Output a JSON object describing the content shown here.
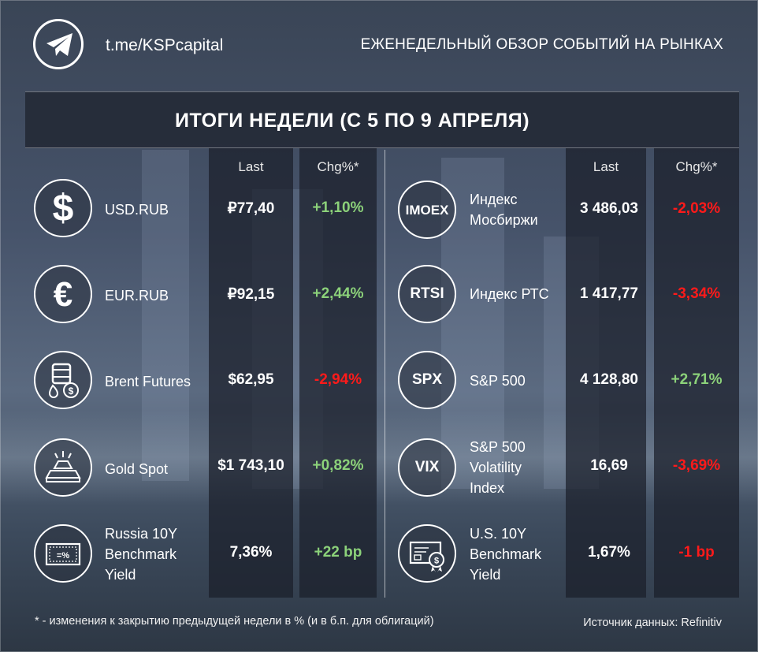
{
  "header": {
    "link": "t.me/KSPcapital",
    "title": "ЕЖЕНЕДЕЛЬНЫЙ ОБЗОР СОБЫТИЙ НА РЫНКАХ"
  },
  "banner": {
    "title": "ИТОГИ НЕДЕЛИ (С 5 ПО 9 АПРЕЛЯ)"
  },
  "columns": {
    "last": "Last",
    "chg": "Chg%*"
  },
  "left_rows": [
    {
      "icon": "dollar-icon",
      "name": "USD.RUB",
      "last": "₽77,40",
      "chg": "+1,10%",
      "dir": "up"
    },
    {
      "icon": "euro-icon",
      "name": "EUR.RUB",
      "last": "₽92,15",
      "chg": "+2,44%",
      "dir": "up"
    },
    {
      "icon": "oil-barrel-icon",
      "name": "Brent Futures",
      "last": "$62,95",
      "chg": "-2,94%",
      "dir": "down"
    },
    {
      "icon": "gold-bars-icon",
      "name": "Gold Spot",
      "last": "$1 743,10",
      "chg": "+0,82%",
      "dir": "up"
    },
    {
      "icon": "bond-certificate-icon",
      "name_lines": [
        "Russia 10Y",
        "Benchmark",
        "Yield"
      ],
      "last": "7,36%",
      "chg": "+22 bp",
      "dir": "up"
    }
  ],
  "right_rows": [
    {
      "icon_text": "IMOEX",
      "name_lines": [
        "Индекс",
        "Мосбиржи"
      ],
      "last": "3 486,03",
      "chg": "-2,03%",
      "dir": "down"
    },
    {
      "icon_text": "RTSI",
      "name": "Индекс РТС",
      "last": "1 417,77",
      "chg": "-3,34%",
      "dir": "down"
    },
    {
      "icon_text": "SPX",
      "name": "S&P 500",
      "last": "4 128,80",
      "chg": "+2,71%",
      "dir": "up"
    },
    {
      "icon_text": "VIX",
      "name_lines": [
        "S&P 500",
        "Volatility",
        "Index"
      ],
      "last": "16,69",
      "chg": "-3,69%",
      "dir": "down"
    },
    {
      "icon": "bond-seal-icon",
      "name_lines": [
        "U.S. 10Y",
        "Benchmark",
        "Yield"
      ],
      "last": "1,67%",
      "chg": "-1 bp",
      "dir": "down"
    }
  ],
  "footer": {
    "note": "* - изменения к закрытию предыдущей недели в % (и в б.п. для облигаций)",
    "source": "Источник данных: Refinitiv"
  },
  "colors": {
    "positive": "#8cd27a",
    "negative": "#ff1a1a",
    "background": "#46536a"
  }
}
